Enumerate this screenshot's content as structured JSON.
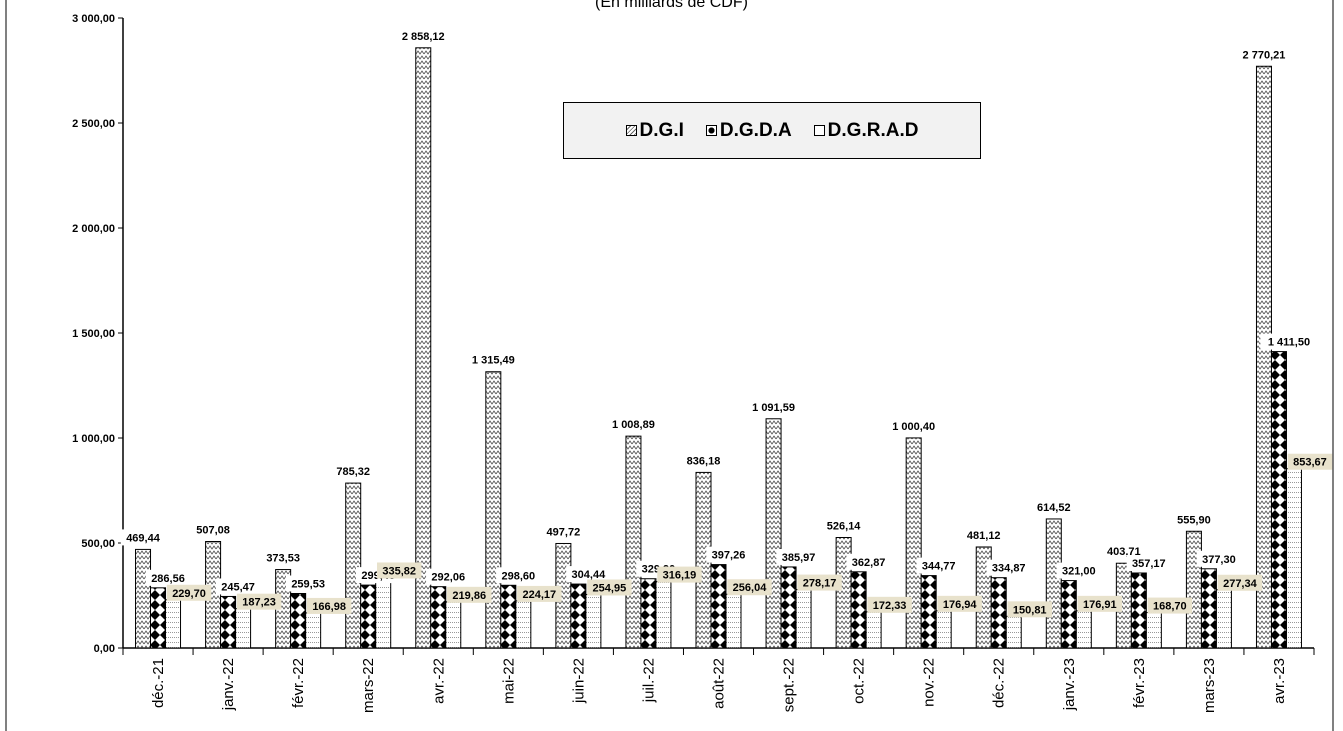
{
  "subtitle": "(En milliards de CDF)",
  "chart_data": {
    "type": "bar",
    "title": "",
    "subtitle": "(En milliards de CDF)",
    "xlabel": "",
    "ylabel": "",
    "ylim": [
      0,
      3000
    ],
    "yticks": [
      "0,00",
      "500,00",
      "1 000,00",
      "1 500,00",
      "2 000,00",
      "2 500,00",
      "3 000,00"
    ],
    "legend_position": "top-center",
    "categories": [
      "déc.-21",
      "janv.-22",
      "févr.-22",
      "mars-22",
      "avr.-22",
      "mai-22",
      "juin-22",
      "juil.-22",
      "août-22",
      "sept.-22",
      "oct.-22",
      "nov.-22",
      "déc.-22",
      "janv.-23",
      "févr.-23",
      "mars-23",
      "avr.-23"
    ],
    "series": [
      {
        "name": "D.G.I",
        "pattern": "zigzag",
        "values": [
          469.44,
          507.08,
          373.53,
          785.32,
          2858.12,
          1315.49,
          497.72,
          1008.89,
          836.18,
          1091.59,
          526.14,
          1000.4,
          481.12,
          614.52,
          403.71,
          555.9,
          2770.21
        ],
        "labels": [
          "469,44",
          "507,08",
          "373,53",
          "785,32",
          "2 858,12",
          "1 315,49",
          "497,72",
          "1 008,89",
          "836,18",
          "1 091,59",
          "526,14",
          "1 000,40",
          "481,12",
          "614,52",
          "403,71",
          "555,90",
          "2 770,21"
        ]
      },
      {
        "name": "D.G.D.A",
        "pattern": "diamonds",
        "values": [
          286.56,
          245.47,
          259.53,
          299.48,
          292.06,
          298.6,
          304.44,
          329.9,
          397.26,
          385.97,
          362.87,
          344.77,
          334.87,
          321.0,
          357.17,
          377.3,
          1411.5
        ],
        "labels": [
          "286,56",
          "245,47",
          "259,53",
          "299,48",
          "292,06",
          "298,60",
          "304,44",
          "329,90",
          "397,26",
          "385,97",
          "362,87",
          "344,77",
          "334,87",
          "321,00",
          "357,17",
          "377,30",
          "1 411,50"
        ]
      },
      {
        "name": "D.G.R.A.D",
        "pattern": "dotted",
        "values": [
          229.7,
          187.23,
          166.98,
          335.82,
          219.86,
          224.17,
          254.95,
          316.19,
          256.04,
          278.17,
          172.33,
          176.94,
          150.81,
          176.91,
          168.7,
          277.34,
          853.67
        ],
        "labels": [
          "229,70",
          "187,23",
          "166,98",
          "335,82",
          "219,86",
          "224,17",
          "254,95",
          "316,19",
          "256,04",
          "278,17",
          "172,33",
          "176,94",
          "150,81",
          "176,91",
          "168,70",
          "277,34",
          "853,67"
        ]
      }
    ]
  }
}
